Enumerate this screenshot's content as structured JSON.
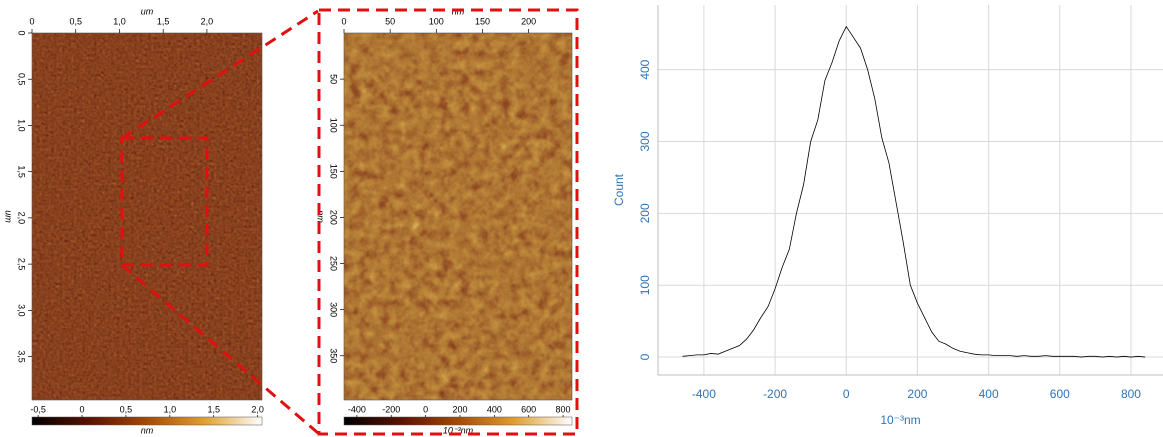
{
  "chart_data": [
    {
      "type": "heatmap",
      "xlabel": "um",
      "ylabel": "um",
      "xlim": [
        0,
        2.63
      ],
      "ylim": [
        0,
        3.97
      ],
      "y_inverted": true,
      "xticks": [
        0,
        {
          "value": 0.5,
          "label": "0,5"
        },
        {
          "value": 1.0,
          "label": "1,0"
        },
        {
          "value": 1.5,
          "label": "1,5"
        },
        {
          "value": 2.0,
          "label": "2,0"
        }
      ],
      "yticks": [
        0,
        {
          "value": 0.5,
          "label": "0,5"
        },
        {
          "value": 1.0,
          "label": "1,0"
        },
        {
          "value": 1.5,
          "label": "1,5"
        },
        {
          "value": 2.0,
          "label": "2,0"
        },
        {
          "value": 2.5,
          "label": "2,5"
        },
        {
          "value": 3.0,
          "label": "3,0"
        },
        {
          "value": 3.5,
          "label": "3,5"
        }
      ],
      "colorbar": {
        "label": "nm",
        "lim": [
          -0.57,
          2.05
        ],
        "ticks": [
          {
            "value": -0.5,
            "label": "-0,5"
          },
          0,
          {
            "value": 0.5,
            "label": "0,5"
          },
          {
            "value": 1.0,
            "label": "1,0"
          },
          {
            "value": 1.5,
            "label": "1,5"
          },
          {
            "value": 2.0,
            "label": "2,0"
          }
        ]
      },
      "colormap": [
        "#000000",
        "#5a1200",
        "#a34a05",
        "#e0a030",
        "#ffffff"
      ]
    },
    {
      "type": "heatmap",
      "xlabel": "nm",
      "ylabel": "nm",
      "xlim": [
        0,
        247
      ],
      "ylim": [
        0,
        398
      ],
      "y_inverted": true,
      "xticks": [
        0,
        50,
        100,
        150,
        200
      ],
      "yticks": [
        50,
        100,
        150,
        200,
        250,
        300,
        350
      ],
      "colorbar": {
        "label": "10⁻³nm",
        "lim": [
          -475,
          852
        ],
        "ticks": [
          -400,
          -200,
          0,
          200,
          400,
          600,
          800
        ]
      },
      "colormap": [
        "#000000",
        "#5a1200",
        "#a34a05",
        "#e0a030",
        "#ffffff"
      ]
    },
    {
      "type": "line",
      "xlabel": "10⁻³nm",
      "ylabel": "Count",
      "color": "#000000",
      "grid": true,
      "xlim": [
        -529,
        890
      ],
      "ylim": [
        -25,
        490
      ],
      "xticks": [
        -400,
        -200,
        0,
        200,
        400,
        600,
        800
      ],
      "yticks": [
        0,
        100,
        200,
        300,
        400
      ],
      "x": [
        -460,
        -440,
        -420,
        -400,
        -380,
        -360,
        -340,
        -320,
        -300,
        -280,
        -260,
        -240,
        -220,
        -200,
        -180,
        -160,
        -140,
        -120,
        -100,
        -80,
        -60,
        -40,
        -20,
        0,
        20,
        40,
        60,
        80,
        100,
        120,
        140,
        160,
        180,
        200,
        220,
        240,
        260,
        280,
        300,
        320,
        340,
        360,
        380,
        400,
        420,
        440,
        460,
        480,
        500,
        520,
        540,
        560,
        580,
        600,
        620,
        640,
        660,
        680,
        700,
        720,
        740,
        760,
        780,
        800,
        820,
        840
      ],
      "values": [
        1,
        2,
        3,
        3,
        5,
        4,
        8,
        12,
        16,
        25,
        38,
        55,
        70,
        95,
        125,
        150,
        200,
        240,
        300,
        330,
        385,
        410,
        440,
        460,
        445,
        430,
        400,
        360,
        305,
        270,
        215,
        160,
        100,
        75,
        55,
        35,
        22,
        18,
        12,
        8,
        6,
        4,
        3,
        3,
        2,
        2,
        2,
        1,
        2,
        1,
        1,
        2,
        1,
        1,
        1,
        1,
        0,
        1,
        1,
        0,
        1,
        0,
        1,
        0,
        1,
        0
      ]
    }
  ]
}
